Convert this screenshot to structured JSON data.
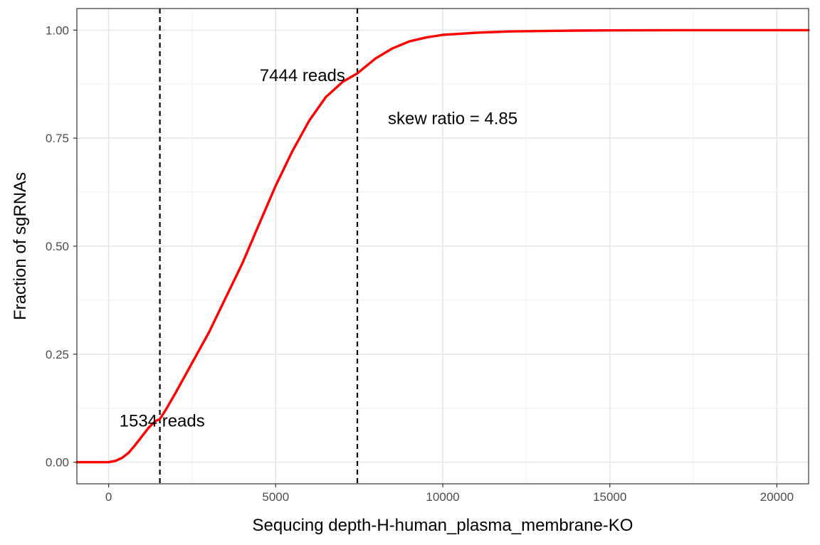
{
  "chart_data": {
    "type": "line",
    "title": "",
    "xlabel": "Sequcing depth-H-human_plasma_membrane-KO",
    "ylabel": "Fraction of sgRNAs",
    "xlim": [
      -950,
      20950
    ],
    "ylim": [
      -0.05,
      1.05
    ],
    "x_ticks": [
      0,
      5000,
      10000,
      15000,
      20000
    ],
    "x_tick_labels": [
      "0",
      "5000",
      "10000",
      "15000",
      "20000"
    ],
    "x_minor_ticks": [
      2500,
      7500,
      12500,
      17500
    ],
    "y_ticks": [
      0,
      0.25,
      0.5,
      0.75,
      1.0
    ],
    "y_tick_labels": [
      "0.00",
      "0.25",
      "0.50",
      "0.75",
      "1.00"
    ],
    "y_minor_ticks": [
      0.125,
      0.375,
      0.625,
      0.875
    ],
    "grid": true,
    "series": [
      {
        "color": "#ff0000",
        "x": [
          -950,
          0,
          200,
          400,
          600,
          800,
          1000,
          1200,
          1400,
          1534,
          1700,
          2000,
          2500,
          3000,
          3500,
          4000,
          4500,
          5000,
          5500,
          6000,
          6500,
          7000,
          7444,
          8000,
          8500,
          9000,
          9500,
          10000,
          11000,
          12000,
          13000,
          14000,
          15000,
          17000,
          20950
        ],
        "y": [
          0,
          0,
          0.003,
          0.01,
          0.022,
          0.04,
          0.06,
          0.08,
          0.095,
          0.1,
          0.12,
          0.16,
          0.23,
          0.3,
          0.38,
          0.46,
          0.55,
          0.64,
          0.72,
          0.79,
          0.845,
          0.88,
          0.9,
          0.935,
          0.958,
          0.974,
          0.983,
          0.989,
          0.994,
          0.997,
          0.998,
          0.999,
          0.9995,
          1.0,
          1.0
        ]
      }
    ],
    "vlines": [
      {
        "x": 1534,
        "style": "dashed",
        "color": "#000000"
      },
      {
        "x": 7444,
        "style": "dashed",
        "color": "#000000"
      }
    ],
    "annotations": [
      {
        "text": "1534 reads",
        "x": 1600,
        "y": 0.097
      },
      {
        "text": "7444 reads",
        "x": 5800,
        "y": 0.897
      },
      {
        "text": "skew ratio = 4.85",
        "x": 10300,
        "y": 0.797
      }
    ]
  }
}
